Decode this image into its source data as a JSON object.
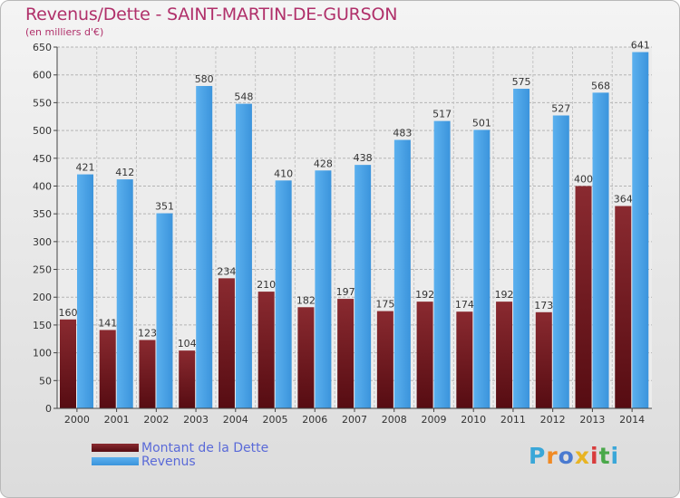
{
  "header": {
    "title": "Revenus/Dette - SAINT-MARTIN-DE-GURSON",
    "subtitle": "(en milliers d'€)"
  },
  "brand": {
    "text": "Proxiti",
    "letters": [
      "P",
      "r",
      "o",
      "x",
      "i",
      "t",
      "i"
    ],
    "letter_colors": [
      "#3aa7d8",
      "#f08a24",
      "#4a7ad0",
      "#e8b423",
      "#d83c3c",
      "#4aa84a",
      "#3aa7d8"
    ]
  },
  "legend": {
    "items": [
      {
        "label": "Montant de la Dette",
        "color": "#7a1f25"
      },
      {
        "label": "Revenus",
        "color": "#3d9ee6"
      }
    ]
  },
  "chart_data": {
    "type": "bar",
    "title": "Revenus/Dette - SAINT-MARTIN-DE-GURSON",
    "subtitle": "(en milliers d'€)",
    "categories": [
      "2000",
      "2001",
      "2002",
      "2003",
      "2004",
      "2005",
      "2006",
      "2007",
      "2008",
      "2009",
      "2010",
      "2011",
      "2012",
      "2013",
      "2014"
    ],
    "series": [
      {
        "name": "Montant de la Dette",
        "color": "#7a1f25",
        "values": [
          160,
          141,
          123,
          104,
          234,
          210,
          182,
          197,
          175,
          192,
          174,
          192,
          173,
          400,
          364
        ]
      },
      {
        "name": "Revenus",
        "color": "#3d9ee6",
        "values": [
          421,
          412,
          351,
          580,
          548,
          410,
          428,
          438,
          483,
          517,
          501,
          575,
          527,
          568,
          641
        ]
      }
    ],
    "ylim": [
      0,
      650
    ],
    "yticks": [
      0,
      50,
      100,
      150,
      200,
      250,
      300,
      350,
      400,
      450,
      500,
      550,
      600,
      650
    ],
    "grid": true,
    "legend_position": "bottom-left"
  }
}
